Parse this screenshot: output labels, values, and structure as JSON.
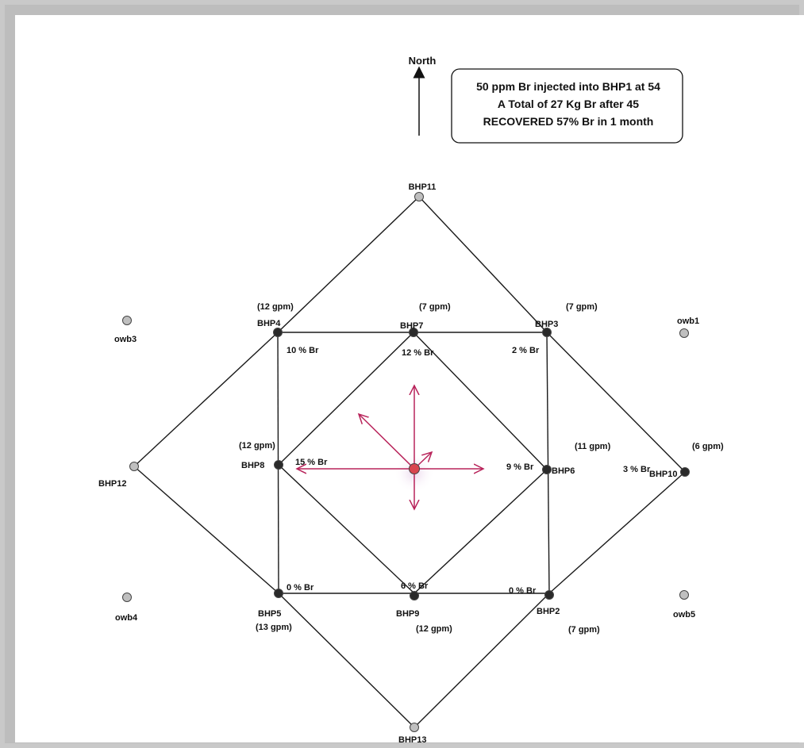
{
  "north_label": "North",
  "info": {
    "line1": "50 ppm Br injected into BHP1 at 54",
    "line2": "A Total of 27 Kg Br after 45",
    "line3": "RECOVERED 57% Br in 1 month"
  },
  "wells": {
    "BHP1": "",
    "BHP2": "BHP2",
    "BHP3": "BHP3",
    "BHP4": "BHP4",
    "BHP5": "BHP5",
    "BHP6": "BHP6",
    "BHP7": "BHP7",
    "BHP8": "BHP8",
    "BHP9": "BHP9",
    "BHP10": "BHP10",
    "BHP11": "BHP11",
    "BHP12": "BHP12",
    "BHP13": "BHP13",
    "owb1": "owb1",
    "owb3": "owb3",
    "owb4": "owb4",
    "owb5": "owb5"
  },
  "flow_rates": {
    "BHP4": "(12 gpm)",
    "BHP7": "(7 gpm)",
    "BHP3": "(7 gpm)",
    "BHP8": "(12 gpm)",
    "BHP6": "(11 gpm)",
    "BHP10": "(6 gpm)",
    "BHP5": "(13 gpm)",
    "BHP9": "(12 gpm)",
    "BHP2": "(7 gpm)"
  },
  "recoveries": {
    "BHP4": "10 % Br",
    "BHP7": "12 % Br",
    "BHP3": "2 % Br",
    "BHP8": "15 % Br",
    "BHP6": "9 % Br",
    "BHP10": "3 % Br",
    "BHP5": "0 % Br",
    "BHP9": "6 % Br",
    "BHP2": "0 % Br"
  },
  "colors": {
    "active_well": "#2a2a2a",
    "inactive_well": "#bfbfbf",
    "injection_well": "#d9464f",
    "arrow": "#b8235a",
    "line": "#1a1a1a"
  }
}
